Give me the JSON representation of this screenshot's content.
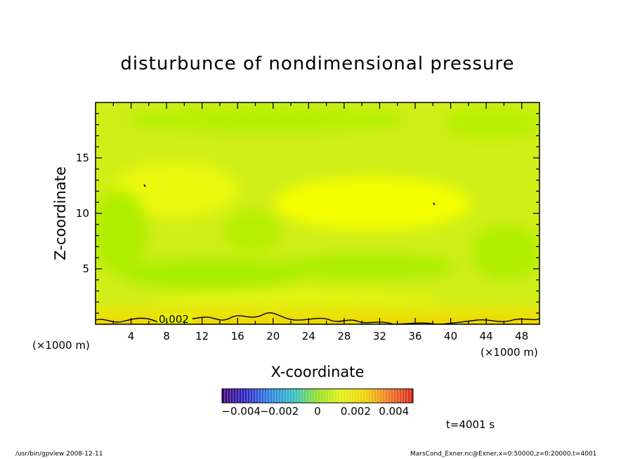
{
  "chart_data": {
    "type": "heatmap",
    "title": "disturbunce of nondimensional pressure",
    "xlabel": "X-coordinate",
    "ylabel": "Z-coordinate",
    "x_units": "(×1000 m)",
    "xlim": [
      0,
      50
    ],
    "ylim": [
      0,
      20
    ],
    "x_ticks": [
      4,
      8,
      12,
      16,
      20,
      24,
      28,
      32,
      36,
      40,
      44,
      48
    ],
    "y_ticks": [
      5,
      10,
      15
    ],
    "contour_label": "0.002",
    "colorbar": {
      "range": [
        -0.005,
        0.005
      ],
      "tick_labels": [
        "−0.004",
        "−0.002",
        "0",
        "0.002",
        "0.004"
      ],
      "tick_values": [
        -0.004,
        -0.002,
        0,
        0.002,
        0.004
      ]
    },
    "time_label": "t=4001 s"
  },
  "footer": {
    "left": "/usr/bin/gpview   2008-12-11",
    "right": "MarsCond_Exner.nc@Exner,x=0:50000,z=0:20000,t=4001"
  },
  "colors": {
    "field_base": "#d4f01a",
    "field_high": "#f4ff00",
    "field_low": "#aaf000",
    "bottom_band": "#e8e000"
  }
}
